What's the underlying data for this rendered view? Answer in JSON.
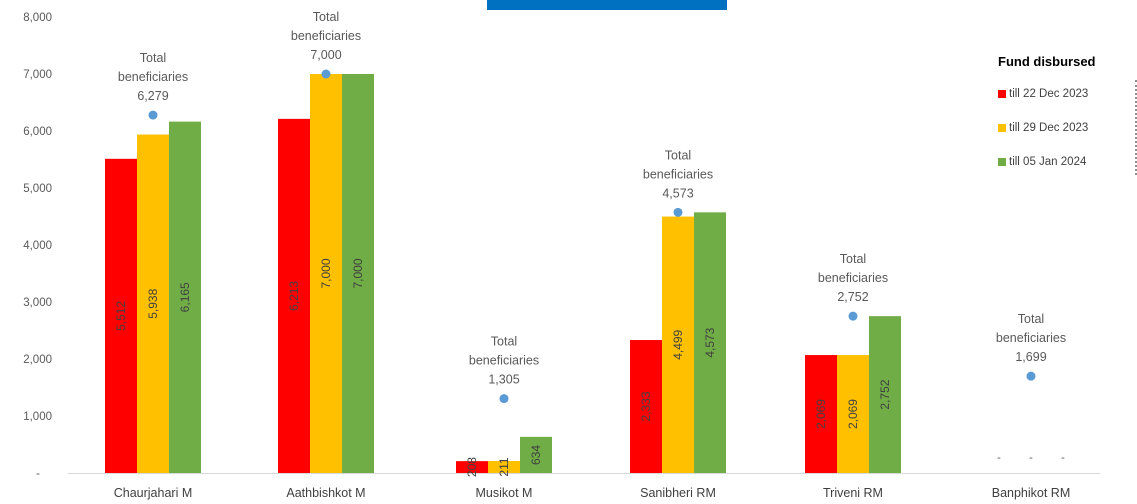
{
  "colors": {
    "till_22_dec": "#ff0000",
    "till_29_dec": "#ffc000",
    "till_05_jan": "#70ad47",
    "total_marker": "#5b9bd5",
    "banner": "#0070c0"
  },
  "legend": {
    "title": "Fund disbursed",
    "items": [
      "till 22 Dec 2023",
      "till 29 Dec 2023",
      "till 05 Jan 2024"
    ]
  },
  "chart_data": {
    "type": "bar",
    "categories": [
      "Chaurjahari M",
      "Aathbishkot M",
      "Musikot M",
      "Sanibheri RM",
      "Triveni RM",
      "Banphikot RM"
    ],
    "series": [
      {
        "name": "till 22 Dec 2023",
        "values": [
          5512,
          6213,
          208,
          2333,
          2069,
          0
        ],
        "labels": [
          "5,512",
          "6,213",
          "208",
          "2,333",
          "2,069",
          "-"
        ]
      },
      {
        "name": "till 29 Dec 2023",
        "values": [
          5938,
          7000,
          211,
          4499,
          2069,
          0
        ],
        "labels": [
          "5,938",
          "7,000",
          "211",
          "4,499",
          "2,069",
          "-"
        ]
      },
      {
        "name": "till 05 Jan 2024",
        "values": [
          6165,
          7000,
          634,
          4573,
          2752,
          0
        ],
        "labels": [
          "6,165",
          "7,000",
          "634",
          "4,573",
          "2,752",
          "-"
        ]
      }
    ],
    "total_beneficiaries": {
      "line1": "Total",
      "line2": "beneficiaries",
      "values": [
        6279,
        7000,
        1305,
        4573,
        2752,
        1699
      ],
      "labels": [
        "6,279",
        "7,000",
        "1,305",
        "4,573",
        "2,752",
        "1,699"
      ]
    },
    "ylim": [
      0,
      8000
    ],
    "yticks": [
      0,
      1000,
      2000,
      3000,
      4000,
      5000,
      6000,
      7000,
      8000
    ],
    "ytick_labels": [
      "-",
      "1,000",
      "2,000",
      "3,000",
      "4,000",
      "5,000",
      "6,000",
      "7,000",
      "8,000"
    ],
    "grid": false,
    "legend_position": "right"
  }
}
